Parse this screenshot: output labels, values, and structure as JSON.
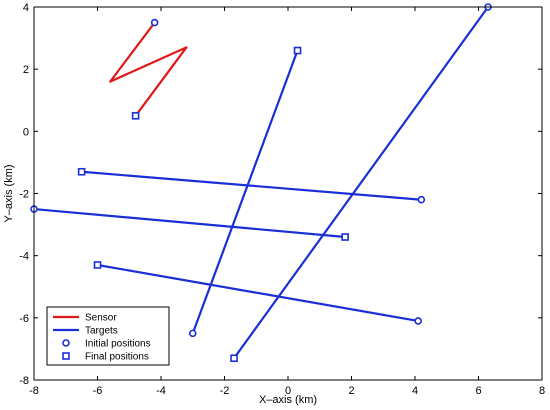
{
  "chart_data": {
    "type": "line",
    "title": "",
    "xlabel": "X–axis (km)",
    "ylabel": "Y–axis (km)",
    "xlim": [
      -8,
      8
    ],
    "ylim": [
      -8,
      4
    ],
    "xticks": [
      -8,
      -6,
      -4,
      -2,
      0,
      2,
      4,
      6,
      8
    ],
    "yticks": [
      -8,
      -6,
      -4,
      -2,
      0,
      2,
      4
    ],
    "grid": false,
    "legend_position": "bottom-left",
    "colors": {
      "sensor": "#e01818",
      "targets": "#1a2fd6",
      "axes": "#000000"
    },
    "series": [
      {
        "name": "Sensor",
        "role": "sensor",
        "points": [
          [
            -4.2,
            3.5
          ],
          [
            -5.6,
            1.6
          ],
          [
            -3.2,
            2.7
          ],
          [
            -4.8,
            0.5
          ]
        ],
        "initial": [
          -4.2,
          3.5
        ],
        "final": [
          -4.8,
          0.5
        ]
      },
      {
        "name": "Targets",
        "role": "target",
        "points": [
          [
            -3.0,
            -6.5
          ],
          [
            0.3,
            2.6
          ]
        ],
        "initial": [
          -3.0,
          -6.5
        ],
        "final": [
          0.3,
          2.6
        ]
      },
      {
        "role": "target",
        "points": [
          [
            6.3,
            4.0
          ],
          [
            -1.7,
            -7.3
          ]
        ],
        "initial": [
          6.3,
          4.0
        ],
        "final": [
          -1.7,
          -7.3
        ]
      },
      {
        "role": "target",
        "points": [
          [
            4.2,
            -2.2
          ],
          [
            -6.5,
            -1.3
          ]
        ],
        "initial": [
          4.2,
          -2.2
        ],
        "final": [
          -6.5,
          -1.3
        ]
      },
      {
        "role": "target",
        "points": [
          [
            -8.0,
            -2.5
          ],
          [
            1.8,
            -3.4
          ]
        ],
        "initial": [
          -8.0,
          -2.5
        ],
        "final": [
          1.8,
          -3.4
        ]
      },
      {
        "role": "target",
        "points": [
          [
            4.1,
            -6.1
          ],
          [
            -6.0,
            -4.3
          ]
        ],
        "initial": [
          4.1,
          -6.1
        ],
        "final": [
          -6.0,
          -4.3
        ]
      }
    ],
    "legend": [
      {
        "label": "Sensor",
        "kind": "line",
        "color_key": "sensor"
      },
      {
        "label": "Targets",
        "kind": "line",
        "color_key": "targets"
      },
      {
        "label": "Initial positions",
        "kind": "circle",
        "color_key": "targets"
      },
      {
        "label": "Final positions",
        "kind": "square",
        "color_key": "targets"
      }
    ]
  }
}
